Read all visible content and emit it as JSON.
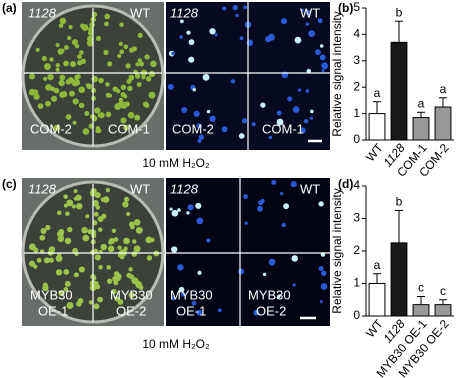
{
  "figure": {
    "a_label": "(a)",
    "a_plate_labels": [
      "1128",
      "WT",
      "COM-2",
      "COM-1"
    ],
    "a_fluor_labels": [
      "1128",
      "WT",
      "COM-2",
      "COM-1"
    ],
    "a_caption": "10 mM H₂O₂",
    "b_label": "(b)",
    "c_label": "(c)",
    "c_plate_labels": [
      "1128",
      "WT",
      "MYB30",
      "OE-1",
      "MYB30",
      "OE-2"
    ],
    "c_fluor_labels": [
      "1128",
      "WT",
      "MYB30",
      "OE-1",
      "MYB30",
      "OE-2"
    ],
    "c_caption": "10 mM H₂O₂",
    "d_label": "(d)"
  },
  "chart_data": [
    {
      "type": "bar",
      "y_label": "Relative signal intensity",
      "categories": [
        "WT",
        "1128",
        "COM-1",
        "COM-2"
      ],
      "series": [
        {
          "colors": [
            "#ffffff",
            "#1a1a1a",
            "#999999",
            "#999999"
          ],
          "values": [
            1.0,
            3.7,
            0.85,
            1.25
          ],
          "errors": [
            0.45,
            0.8,
            0.2,
            0.35
          ],
          "annotations": [
            "a",
            "b",
            "a",
            "a"
          ]
        }
      ],
      "ylim": [
        0,
        5
      ],
      "yticks": [
        0,
        1,
        2,
        3,
        4,
        5
      ]
    },
    {
      "type": "bar",
      "y_label": "Relative signal intensity",
      "categories": [
        "WT",
        "1128",
        "MYB30 OE-1",
        "MYB30 OE-2"
      ],
      "series": [
        {
          "colors": [
            "#ffffff",
            "#1a1a1a",
            "#999999",
            "#999999"
          ],
          "values": [
            1.0,
            2.25,
            0.35,
            0.35
          ],
          "errors": [
            0.3,
            1.0,
            0.25,
            0.15
          ],
          "annotations": [
            "a",
            "b",
            "c",
            "c"
          ]
        }
      ],
      "ylim": [
        0,
        4
      ],
      "yticks": [
        0,
        1,
        2,
        3,
        4
      ]
    }
  ]
}
